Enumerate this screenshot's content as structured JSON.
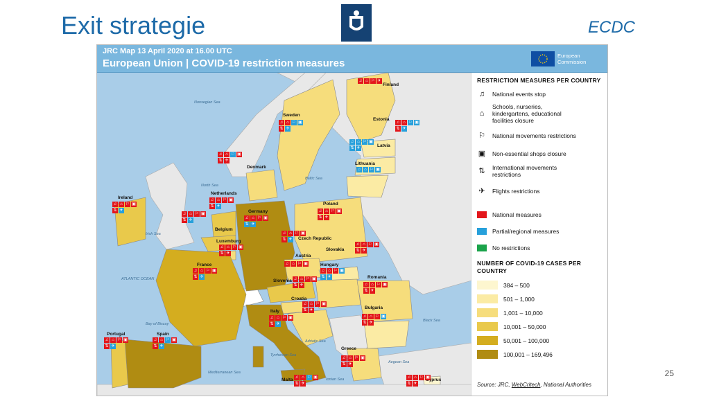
{
  "slide": {
    "title": "Exit strategie",
    "source_tag": "ECDC",
    "page_number": "25"
  },
  "map": {
    "caption": "JRC Map 13 April 2020 at 16.00 UTC",
    "title": "European Union | COVID-19 restriction measures",
    "logo_text_1": "European",
    "logo_text_2": "Commission",
    "sea_labels": [
      "Norwegian Sea",
      "Baltic Sea",
      "Irish Sea",
      "North Sea",
      "Bay of Biscay",
      "ATLANTIC OCEAN",
      "Tyrrhenian Sea",
      "Adriatic Sea",
      "Mediterranean Sea",
      "Ionian Sea",
      "Aegean Sea",
      "Black Sea"
    ],
    "countries": [
      {
        "name": "Finland"
      },
      {
        "name": "Sweden"
      },
      {
        "name": "Estonia"
      },
      {
        "name": "Latvia"
      },
      {
        "name": "Lithuania"
      },
      {
        "name": "Denmark"
      },
      {
        "name": "Ireland"
      },
      {
        "name": "Netherlands"
      },
      {
        "name": "Germany"
      },
      {
        "name": "Poland"
      },
      {
        "name": "Belgium"
      },
      {
        "name": "Luxemburg"
      },
      {
        "name": "Czech Republic"
      },
      {
        "name": "Slovakia"
      },
      {
        "name": "France"
      },
      {
        "name": "Austria"
      },
      {
        "name": "Hungary"
      },
      {
        "name": "Romania"
      },
      {
        "name": "Slovenia"
      },
      {
        "name": "Croatia"
      },
      {
        "name": "Bulgaria"
      },
      {
        "name": "Italy"
      },
      {
        "name": "Portugal"
      },
      {
        "name": "Spain"
      },
      {
        "name": "Greece"
      },
      {
        "name": "Malta"
      },
      {
        "name": "Cyprus"
      }
    ]
  },
  "legend": {
    "measures_title": "RESTRICTION MEASURES PER COUNTRY",
    "measures": [
      {
        "label": "National events stop",
        "icon": "events-icon"
      },
      {
        "label": "Schools, nurseries, kindergartens, educational facilities closure",
        "icon": "school-icon"
      },
      {
        "label": "National movements restrictions",
        "icon": "walking-icon"
      },
      {
        "label": "Non-essential shops closure",
        "icon": "shop-icon"
      },
      {
        "label": "International movements restrictions",
        "icon": "international-icon"
      },
      {
        "label": "Flights restrictions",
        "icon": "plane-icon"
      }
    ],
    "levels": [
      {
        "label": "National measures",
        "color": "#e3161b"
      },
      {
        "label": "Partial/regional measures",
        "color": "#27a0db"
      },
      {
        "label": "No restrictions",
        "color": "#1aa34a"
      }
    ],
    "cases_title": "NUMBER OF COVID-19 CASES PER COUNTRY",
    "cases_scale": [
      {
        "label": "384 – 500",
        "color": "#fdf6cf"
      },
      {
        "label": "501 – 1,000",
        "color": "#fbeba4"
      },
      {
        "label": "1,001 – 10,000",
        "color": "#f6dd7c"
      },
      {
        "label": "10,001 – 50,000",
        "color": "#e9c94b"
      },
      {
        "label": "50,001 – 100,000",
        "color": "#d4ad1f"
      },
      {
        "label": "100,001 – 169,496",
        "color": "#b08c12"
      }
    ],
    "credit_prefix": "Source: JRC, ",
    "credit_link": "WebCritech",
    "credit_suffix": ", National Authorities"
  }
}
